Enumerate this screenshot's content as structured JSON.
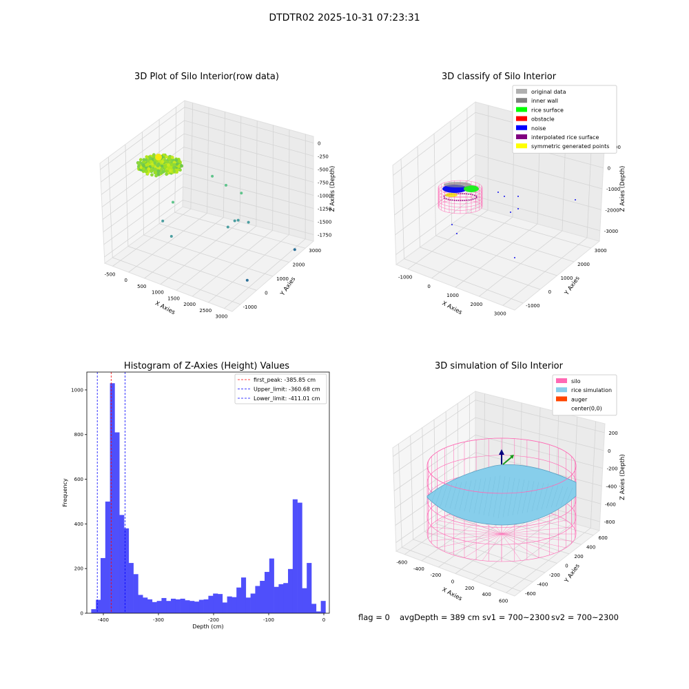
{
  "suptitle": "DTDTR02 2025-10-31 07:23:31",
  "footer": {
    "flag": "flag = 0",
    "avg": "avgDepth = 389 cm",
    "sv1": "sv1 = 700~2300",
    "sv2": "sv2 = 700~2300"
  },
  "chart_data": [
    {
      "type": "scatter",
      "title": "3D Plot of Silo Interior(row data)",
      "xlabel": "X Axies",
      "ylabel": "Y Axies",
      "zlabel": "Z Axies (Depth)",
      "x_ticks": [
        "-500",
        "0",
        "500",
        "1000",
        "1500",
        "2000",
        "2500",
        "3000"
      ],
      "y_ticks": [
        "-1000",
        "0",
        "1000",
        "2000",
        "3000"
      ],
      "z_ticks": [
        "0",
        "-250",
        "-500",
        "-750",
        "-1000",
        "-1250",
        "-1500",
        "-1750"
      ],
      "outliers": [
        {
          "x": 900,
          "y": 1900,
          "z": -600
        },
        {
          "x": 1200,
          "y": 2100,
          "z": -750
        },
        {
          "x": 1500,
          "y": 2400,
          "z": -900
        },
        {
          "x": 300,
          "y": 800,
          "z": -1000
        },
        {
          "x": 1700,
          "y": 1600,
          "z": -1200
        },
        {
          "x": 1750,
          "y": 1700,
          "z": -1200
        },
        {
          "x": 1600,
          "y": 1400,
          "z": -1300
        },
        {
          "x": 2000,
          "y": 1800,
          "z": -1200
        },
        {
          "x": 200,
          "y": 400,
          "z": -1300
        },
        {
          "x": 500,
          "y": 300,
          "z": -1500
        },
        {
          "x": 3000,
          "y": 2500,
          "z": -1650
        },
        {
          "x": 2700,
          "y": 300,
          "z": -1800
        }
      ]
    },
    {
      "type": "scatter",
      "title": "3D classify of Silo Interior",
      "xlabel": "X Axies",
      "ylabel": "Y Axies",
      "zlabel": "Z Axies (Depth)",
      "x_ticks": [
        "-1000",
        "0",
        "1000",
        "2000",
        "3000"
      ],
      "y_ticks": [
        "-1000",
        "0",
        "1000",
        "2000",
        "3000"
      ],
      "z_ticks": [
        "1000",
        "0",
        "-1000",
        "-2000",
        "-3000"
      ],
      "legend": [
        {
          "label": "original data",
          "color": "#b0b0b0"
        },
        {
          "label": "inner wall",
          "color": "#808080"
        },
        {
          "label": "rice surface",
          "color": "#00ff00"
        },
        {
          "label": "obstacle",
          "color": "#ff0000"
        },
        {
          "label": "noise",
          "color": "#0000ff"
        },
        {
          "label": "interpolated rice surface",
          "color": "#800080"
        },
        {
          "label": "symmetric generated points",
          "color": "#ffff00"
        }
      ],
      "legend_loc": "upper right"
    },
    {
      "type": "bar",
      "title": "Histogram of Z-Axies (Height) Values",
      "xlabel": "Depth (cm)",
      "ylabel": "Frequency",
      "bin_width": 8.5,
      "bin_start": -422,
      "values": [
        18,
        60,
        247,
        500,
        1030,
        810,
        440,
        380,
        225,
        175,
        82,
        70,
        62,
        50,
        55,
        68,
        55,
        65,
        62,
        65,
        58,
        55,
        52,
        60,
        62,
        78,
        88,
        86,
        48,
        75,
        72,
        115,
        160,
        70,
        88,
        122,
        145,
        185,
        245,
        118,
        130,
        135,
        198,
        510,
        495,
        112,
        225,
        42,
        8,
        55
      ],
      "xlim": [
        -430,
        10
      ],
      "ylim": [
        0,
        1080
      ],
      "x_ticks": [
        -400,
        -300,
        -200,
        -100,
        0
      ],
      "y_ticks": [
        0,
        200,
        400,
        600,
        800,
        1000
      ],
      "lines": [
        {
          "value": -385.85,
          "color": "#ff0000",
          "label": "first_peak: -385.85 cm"
        },
        {
          "value": -360.68,
          "color": "#0000ff",
          "label": "Upper_limit: -360.68 cm"
        },
        {
          "value": -411.01,
          "color": "#0000ff",
          "label": "Lower_limit: -411.01 cm"
        }
      ],
      "legend_loc": "upper right",
      "bar_color": "#4f4ffb"
    },
    {
      "type": "surface",
      "title": "3D simulation of Silo Interior",
      "xlabel": "X Axies",
      "ylabel": "Y Axies",
      "zlabel": "Z Axies (Depth)",
      "x_ticks": [
        "-600",
        "-400",
        "-200",
        "0",
        "200",
        "400",
        "600"
      ],
      "y_ticks": [
        "-600",
        "-400",
        "-200",
        "0",
        "200",
        "400",
        "600"
      ],
      "z_ticks": [
        "200",
        "0",
        "-200",
        "-400",
        "-600",
        "-800"
      ],
      "legend": [
        {
          "label": "silo",
          "color": "#ff69b4"
        },
        {
          "label": "rice simulation",
          "color": "#87ceeb"
        },
        {
          "label": "auger",
          "color": "#ff4500"
        },
        {
          "label": "center(0,0)",
          "color": "#ffffff"
        }
      ],
      "legend_loc": "upper right"
    }
  ]
}
